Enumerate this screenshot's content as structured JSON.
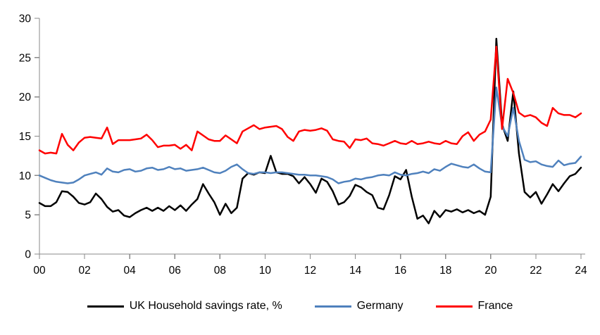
{
  "chart_data": {
    "type": "line",
    "title": "",
    "xlabel": "",
    "ylabel": "",
    "x_start_year": 2000,
    "x_step_years": 0.25,
    "x_tick_labels": [
      "00",
      "02",
      "04",
      "06",
      "08",
      "10",
      "12",
      "14",
      "16",
      "18",
      "20",
      "22",
      "24"
    ],
    "x_tick_interval_years": 2,
    "y_ticks": [
      0,
      5,
      10,
      15,
      20,
      25,
      30
    ],
    "ylim": [
      0,
      30
    ],
    "grid": false,
    "legend_position": "bottom",
    "axis_color": "#888888",
    "background_color": "#ffffff",
    "series": [
      {
        "name": "UK Household savings rate, %",
        "color": "#000000",
        "values": [
          6.5,
          6.1,
          6.1,
          6.6,
          8.0,
          7.9,
          7.3,
          6.5,
          6.3,
          6.6,
          7.7,
          7.0,
          6.0,
          5.4,
          5.6,
          4.9,
          4.7,
          5.2,
          5.6,
          5.9,
          5.5,
          5.9,
          5.5,
          6.1,
          5.6,
          6.2,
          5.5,
          6.3,
          7.0,
          8.9,
          7.7,
          6.6,
          5.0,
          6.4,
          5.2,
          5.9,
          9.6,
          10.3,
          10.1,
          10.4,
          10.3,
          12.5,
          10.4,
          10.2,
          10.2,
          9.9,
          9.0,
          9.8,
          8.9,
          7.8,
          9.6,
          9.2,
          8.0,
          6.3,
          6.6,
          7.4,
          8.8,
          8.5,
          7.9,
          7.5,
          5.9,
          5.7,
          7.5,
          9.9,
          9.5,
          10.7,
          7.3,
          4.5,
          4.9,
          3.9,
          5.5,
          4.7,
          5.6,
          5.4,
          5.7,
          5.3,
          5.6,
          5.2,
          5.5,
          5.0,
          7.3,
          27.4,
          16.5,
          14.4,
          20.7,
          12.8,
          7.9,
          7.2,
          7.9,
          6.4,
          7.6,
          8.9,
          8.0,
          9.0,
          9.9,
          10.2,
          11.0
        ]
      },
      {
        "name": "Germany",
        "color": "#4F81BD",
        "values": [
          10.0,
          9.7,
          9.4,
          9.2,
          9.1,
          9.0,
          9.1,
          9.5,
          10.0,
          10.2,
          10.4,
          10.1,
          10.9,
          10.5,
          10.4,
          10.7,
          10.8,
          10.5,
          10.6,
          10.9,
          11.0,
          10.7,
          10.8,
          11.1,
          10.8,
          10.9,
          10.6,
          10.7,
          10.8,
          11.0,
          10.7,
          10.4,
          10.3,
          10.6,
          11.1,
          11.4,
          10.8,
          10.3,
          10.2,
          10.4,
          10.4,
          10.3,
          10.4,
          10.4,
          10.3,
          10.2,
          10.1,
          10.1,
          10.0,
          10.0,
          9.9,
          9.8,
          9.5,
          9.0,
          9.2,
          9.3,
          9.6,
          9.5,
          9.7,
          9.8,
          10.0,
          10.1,
          10.0,
          10.4,
          10.1,
          10.0,
          10.2,
          10.3,
          10.5,
          10.3,
          10.8,
          10.6,
          11.1,
          11.5,
          11.3,
          11.1,
          11.0,
          11.4,
          10.9,
          10.5,
          10.4,
          21.2,
          16.3,
          15.0,
          18.6,
          14.4,
          12.0,
          11.7,
          11.8,
          11.4,
          11.2,
          11.1,
          11.9,
          11.3,
          11.5,
          11.6,
          12.4
        ]
      },
      {
        "name": "France",
        "color": "#FF0000",
        "values": [
          13.2,
          12.8,
          12.9,
          12.8,
          15.3,
          13.9,
          13.2,
          14.2,
          14.8,
          14.9,
          14.8,
          14.7,
          16.1,
          14.0,
          14.5,
          14.5,
          14.5,
          14.6,
          14.7,
          15.2,
          14.5,
          13.6,
          13.8,
          13.8,
          13.9,
          13.4,
          13.9,
          13.2,
          15.6,
          15.1,
          14.6,
          14.4,
          14.4,
          15.1,
          14.6,
          14.1,
          15.6,
          16.0,
          16.4,
          15.9,
          16.1,
          16.2,
          16.3,
          15.9,
          14.9,
          14.4,
          15.6,
          15.8,
          15.7,
          15.8,
          16.0,
          15.7,
          14.6,
          14.4,
          14.3,
          13.5,
          14.6,
          14.5,
          14.7,
          14.1,
          14.0,
          13.8,
          14.1,
          14.4,
          14.1,
          14.0,
          14.4,
          14.0,
          14.1,
          14.3,
          14.1,
          14.0,
          14.4,
          14.1,
          14.0,
          15.0,
          15.5,
          14.4,
          15.2,
          15.6,
          17.1,
          26.4,
          15.9,
          22.3,
          20.5,
          18.0,
          17.5,
          17.7,
          17.4,
          16.7,
          16.3,
          18.6,
          17.9,
          17.7,
          17.7,
          17.4,
          17.9
        ]
      }
    ]
  }
}
